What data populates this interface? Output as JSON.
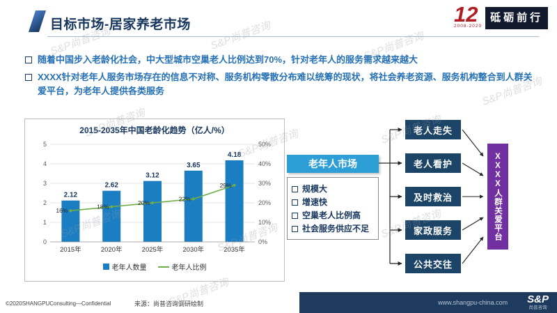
{
  "header": {
    "title": "目标市场-居家养老市场",
    "logo": {
      "number": "12",
      "years": "2008-2020",
      "slogan": "砥砺前行"
    }
  },
  "bullets": [
    "随着中国步入老龄化社会，中大型城市空巢老人比例达到70%，针对老年人的服务需求越来越大",
    "XXXX针对老年人服务市场存在的信息不对称、服务机构零散分布难以统筹的现状，将社会养老资源、服务机构整合到人群关爱平台，为老年人提供各类服务"
  ],
  "chart_data": {
    "type": "bar+line",
    "title": "2015-2035年中国老龄化趋势（亿人/%）",
    "categories": [
      "2015年",
      "2020年",
      "2025年",
      "2030年",
      "2035年"
    ],
    "series": [
      {
        "name": "老年人数量",
        "type": "bar",
        "values": [
          2.12,
          2.62,
          3.12,
          3.65,
          4.18
        ]
      },
      {
        "name": "老年人比例",
        "type": "line",
        "values": [
          16,
          18,
          20,
          22,
          29
        ]
      }
    ],
    "ylim_left": [
      0,
      5
    ],
    "ylim_right": [
      0,
      50
    ],
    "bar_color": "#1B7EC3",
    "line_color": "#70AD47",
    "grid": true,
    "legend_position": "bottom"
  },
  "market": {
    "header": "老年人市场",
    "items": [
      "规模大",
      "增速快",
      "空巢老人比例高",
      "社会服务供应不足"
    ]
  },
  "needs": [
    "老人走失",
    "老人看护",
    "及时救治",
    "家政服务",
    "公共交往"
  ],
  "platform": {
    "label": "XXXX人群关爱平台"
  },
  "footer": {
    "copyright": "©2020SHANGPUConsulting—Confidential",
    "source": "来源：尚普咨询调研绘制",
    "website": "www.shangpu-china.com",
    "logo_text": "S&P",
    "logo_sub": "尚普咨询"
  },
  "watermark": "S&P尚普咨询"
}
